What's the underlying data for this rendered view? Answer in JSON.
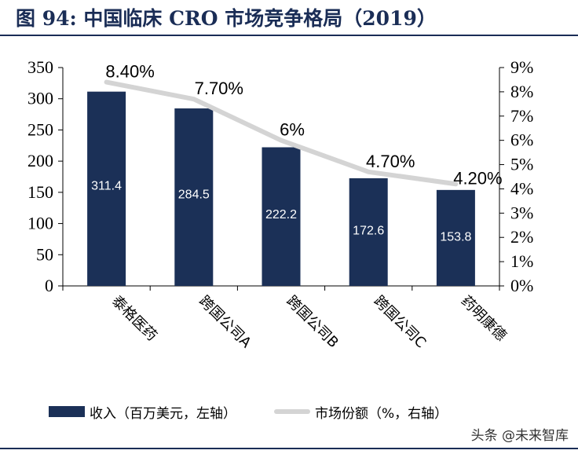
{
  "title": "图 94:  中国临床 CRO 市场竞争格局（2019）",
  "watermark": "头条 @未来智库",
  "colors": {
    "bar": "#1b3057",
    "line": "#d4d4d4",
    "title": "#1a2d56"
  },
  "chart_data": {
    "type": "bar",
    "categories": [
      "泰格医药",
      "跨国公司A",
      "跨国公司B",
      "跨国公司C",
      "药明康德"
    ],
    "series": [
      {
        "name": "收入（百万美元，左轴）",
        "type": "bar",
        "axis": "left",
        "values": [
          311.4,
          284.5,
          222.2,
          172.6,
          153.8
        ],
        "labels": [
          "311.4",
          "284.5",
          "222.2",
          "172.6",
          "153.8"
        ]
      },
      {
        "name": "市场份额（%，右轴）",
        "type": "line",
        "axis": "right",
        "values": [
          8.4,
          7.7,
          6.0,
          4.7,
          4.2
        ],
        "labels": [
          "8.40%",
          "7.70%",
          "6%",
          "4.70%",
          "4.20%"
        ]
      }
    ],
    "y_left": {
      "min": 0,
      "max": 350,
      "ticks": [
        "0",
        "50",
        "100",
        "150",
        "200",
        "250",
        "300",
        "350"
      ]
    },
    "y_right": {
      "min": 0,
      "max": 9,
      "ticks": [
        "0%",
        "1%",
        "2%",
        "3%",
        "4%",
        "5%",
        "6%",
        "7%",
        "8%",
        "9%"
      ]
    },
    "legend_position": "bottom",
    "grid": false
  }
}
